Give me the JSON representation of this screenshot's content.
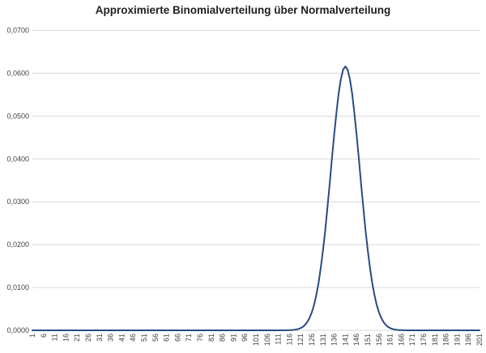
{
  "chart_data": {
    "type": "line",
    "title": "Approximierte Binomialverteilung über Normalverteilung",
    "grid": true,
    "legend": "none",
    "colors": {
      "background": "#ffffff",
      "gridline": "#d9d9d9",
      "tick_label": "#404040",
      "title": "#1f1f1f"
    },
    "x_axis": {
      "min": 1,
      "max": 201,
      "tick_step": 5,
      "tick_labels": [
        "1",
        "6",
        "11",
        "16",
        "21",
        "26",
        "31",
        "36",
        "41",
        "46",
        "51",
        "56",
        "61",
        "66",
        "71",
        "76",
        "81",
        "86",
        "91",
        "96",
        "101",
        "106",
        "111",
        "116",
        "121",
        "126",
        "131",
        "136",
        "141",
        "146",
        "151",
        "156",
        "161",
        "166",
        "171",
        "176",
        "181",
        "186",
        "191",
        "196",
        "201"
      ]
    },
    "y_axis": {
      "min": 0,
      "max": 0.07,
      "tick_step": 0.01,
      "ticks": [
        {
          "label": "0,0000",
          "value": 0
        },
        {
          "label": "0,0100",
          "value": 0.01
        },
        {
          "label": "0,0200",
          "value": 0.02
        },
        {
          "label": "0,0300",
          "value": 0.03
        },
        {
          "label": "0,0400",
          "value": 0.04
        },
        {
          "label": "0,0500",
          "value": 0.05
        },
        {
          "label": "0,0600",
          "value": 0.06
        },
        {
          "label": "0,0700",
          "value": 0.07
        }
      ]
    },
    "series": [
      {
        "color": "#274b82",
        "line_width": 2,
        "peak_x": 141,
        "peak_y": 0.0616,
        "baseline_y": 0,
        "zero_outside_points": true,
        "points": [
          [
            114,
            1e-05
          ],
          [
            115,
            2e-05
          ],
          [
            116,
            3.6e-05
          ],
          [
            117,
            6.5e-05
          ],
          [
            118,
            0.000113
          ],
          [
            119,
            0.000193
          ],
          [
            120,
            0.000325
          ],
          [
            121,
            0.000527
          ],
          [
            122,
            0.000837
          ],
          [
            123,
            0.001301
          ],
          [
            124,
            0.001977
          ],
          [
            125,
            0.002924
          ],
          [
            126,
            0.004225
          ],
          [
            127,
            0.00597
          ],
          [
            128,
            0.008233
          ],
          [
            129,
            0.011087
          ],
          [
            130,
            0.014579
          ],
          [
            131,
            0.018721
          ],
          [
            132,
            0.023473
          ],
          [
            133,
            0.028737
          ],
          [
            134,
            0.034356
          ],
          [
            135,
            0.040106
          ],
          [
            136,
            0.045718
          ],
          [
            137,
            0.050888
          ],
          [
            138,
            0.055311
          ],
          [
            139,
            0.058703
          ],
          [
            140,
            0.060838
          ],
          [
            141,
            0.061566
          ],
          [
            142,
            0.060838
          ],
          [
            143,
            0.058703
          ],
          [
            144,
            0.055311
          ],
          [
            145,
            0.050888
          ],
          [
            146,
            0.045718
          ],
          [
            147,
            0.040106
          ],
          [
            148,
            0.034356
          ],
          [
            149,
            0.028737
          ],
          [
            150,
            0.023473
          ],
          [
            151,
            0.018721
          ],
          [
            152,
            0.014579
          ],
          [
            153,
            0.011087
          ],
          [
            154,
            0.008233
          ],
          [
            155,
            0.00597
          ],
          [
            156,
            0.004225
          ],
          [
            157,
            0.002924
          ],
          [
            158,
            0.001977
          ],
          [
            159,
            0.001301
          ],
          [
            160,
            0.000837
          ],
          [
            161,
            0.000527
          ],
          [
            162,
            0.000325
          ],
          [
            163,
            0.000193
          ],
          [
            164,
            0.000113
          ],
          [
            165,
            6.5e-05
          ],
          [
            166,
            3.6e-05
          ],
          [
            167,
            2e-05
          ],
          [
            168,
            1e-05
          ]
        ]
      }
    ]
  }
}
